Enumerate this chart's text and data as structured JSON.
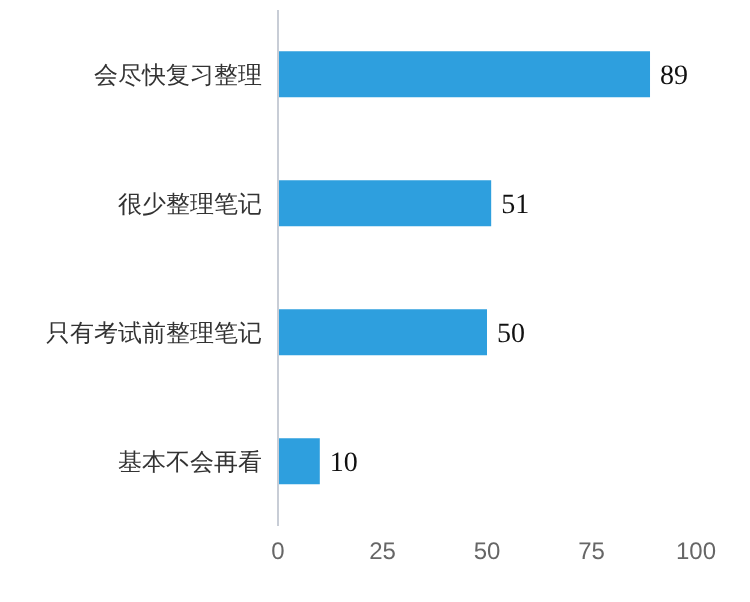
{
  "chart_data": {
    "type": "bar",
    "orientation": "horizontal",
    "categories": [
      "会尽快复习整理",
      "很少整理笔记",
      "只有考试前整理笔记",
      "基本不会再看"
    ],
    "values": [
      89,
      51,
      50,
      10
    ],
    "color": "#2e9fde",
    "xlim": [
      0,
      100
    ],
    "xticks": [
      0,
      25,
      50,
      75,
      100
    ],
    "data_labels": true
  }
}
